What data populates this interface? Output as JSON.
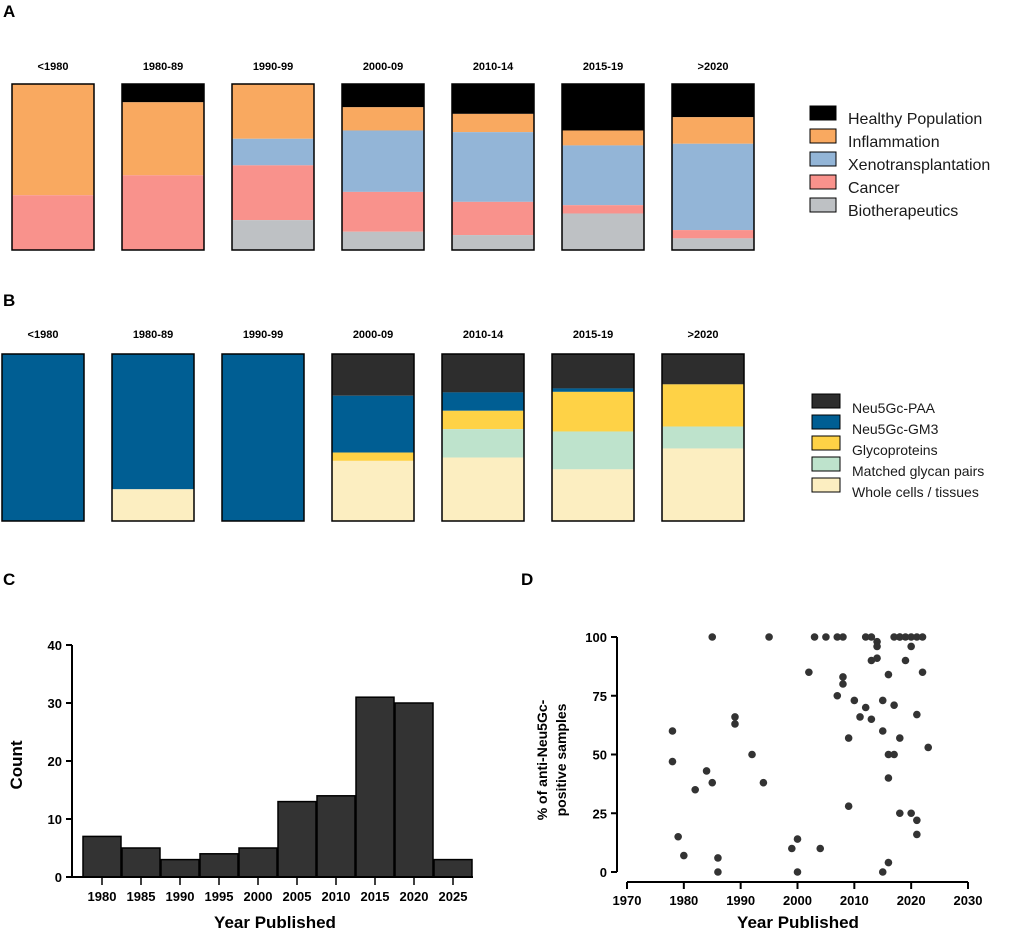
{
  "panels": {
    "a": "A",
    "b": "B",
    "c": "C",
    "d": "D"
  },
  "chart_data": [
    {
      "panel": "A",
      "type": "bar",
      "stacked": true,
      "normalized_percent": true,
      "categories": [
        "<1980",
        "1980-89",
        "1990-99",
        "2000-09",
        "2010-14",
        "2015-19",
        ">2020"
      ],
      "series": [
        {
          "name": "Healthy Population",
          "color": "#000000",
          "values": [
            0,
            11,
            0,
            14,
            18,
            28,
            20
          ]
        },
        {
          "name": "Inflammation",
          "color": "#F9A960",
          "values": [
            67,
            44,
            33,
            14,
            11,
            9,
            16
          ]
        },
        {
          "name": "Xenotransplantation",
          "color": "#93B5D7",
          "values": [
            0,
            0,
            16,
            37,
            42,
            36,
            52
          ]
        },
        {
          "name": "Cancer",
          "color": "#F9928C",
          "values": [
            33,
            45,
            33,
            24,
            20,
            5,
            5
          ]
        },
        {
          "name": "Biotherapeutics",
          "color": "#BEC1C4",
          "values": [
            0,
            0,
            18,
            11,
            9,
            22,
            7
          ]
        }
      ]
    },
    {
      "panel": "B",
      "type": "bar",
      "stacked": true,
      "normalized_percent": true,
      "categories": [
        "<1980",
        "1980-89",
        "1990-99",
        "2000-09",
        "2010-14",
        "2015-19",
        ">2020"
      ],
      "series": [
        {
          "name": "Neu5Gc-PAA",
          "color": "#2D2D2D",
          "values": [
            0,
            0,
            0,
            25,
            23,
            20,
            18
          ]
        },
        {
          "name": "Neu5Gc-GM3",
          "color": "#005E93",
          "values": [
            100,
            81,
            100,
            34,
            11,
            2,
            0
          ]
        },
        {
          "name": "Glycoproteins",
          "color": "#FED246",
          "values": [
            0,
            0,
            0,
            5,
            11,
            23,
            25
          ]
        },
        {
          "name": "Matched glycan pairs",
          "color": "#BEE3CC",
          "values": [
            0,
            0,
            0,
            0,
            17,
            22,
            13
          ]
        },
        {
          "name": "Whole cells / tissues",
          "color": "#FCEEC1",
          "values": [
            0,
            19,
            0,
            36,
            38,
            30,
            43
          ]
        }
      ]
    },
    {
      "panel": "C",
      "type": "bar",
      "categories": [
        "1980",
        "1985",
        "1990",
        "1995",
        "2000",
        "2005",
        "2010",
        "2015",
        "2020",
        "2025"
      ],
      "values": [
        7,
        5,
        3,
        4,
        5,
        13,
        14,
        31,
        30,
        3
      ],
      "xlabel": "Year Published",
      "ylabel": "Count",
      "ylim": [
        0,
        40
      ],
      "yticks": [
        "0",
        "10",
        "20",
        "30",
        "40"
      ],
      "bar_color": "#333333"
    },
    {
      "panel": "D",
      "type": "scatter",
      "xlabel": "Year Published",
      "ylabel": "% of anti-Neu5Gc-positive samples",
      "ylabel_lines": [
        "% of anti-Neu5Gc-",
        "positive samples"
      ],
      "xlim": [
        1970,
        2030
      ],
      "ylim": [
        0,
        100
      ],
      "xticks": [
        "1970",
        "1980",
        "1990",
        "2000",
        "2010",
        "2020",
        "2030"
      ],
      "yticks": [
        "0",
        "25",
        "50",
        "75",
        "100"
      ],
      "point_color": "#333333",
      "x": [
        1978,
        1978,
        1979,
        1980,
        1982,
        1984,
        1985,
        1985,
        1986,
        1986,
        1989,
        1989,
        1992,
        1994,
        1995,
        1999,
        2000,
        2000,
        2002,
        2003,
        2004,
        2005,
        2007,
        2007,
        2008,
        2008,
        2008,
        2009,
        2009,
        2010,
        2011,
        2012,
        2012,
        2013,
        2013,
        2013,
        2014,
        2014,
        2014,
        2015,
        2015,
        2015,
        2016,
        2016,
        2016,
        2016,
        2017,
        2017,
        2017,
        2018,
        2018,
        2018,
        2018,
        2019,
        2019,
        2020,
        2020,
        2020,
        2021,
        2021,
        2021,
        2021,
        2022,
        2022,
        2023
      ],
      "y": [
        60,
        47,
        15,
        7,
        35,
        43,
        100,
        38,
        6,
        0,
        66,
        63,
        50,
        38,
        100,
        10,
        14,
        0,
        85,
        100,
        10,
        100,
        100,
        75,
        100,
        83,
        80,
        57,
        28,
        73,
        66,
        100,
        70,
        100,
        65,
        90,
        98,
        96,
        91,
        73,
        60,
        0,
        50,
        40,
        4,
        84,
        100,
        71,
        50,
        100,
        100,
        25,
        57,
        90,
        100,
        100,
        96,
        25,
        100,
        67,
        22,
        16,
        100,
        85,
        53
      ]
    }
  ]
}
